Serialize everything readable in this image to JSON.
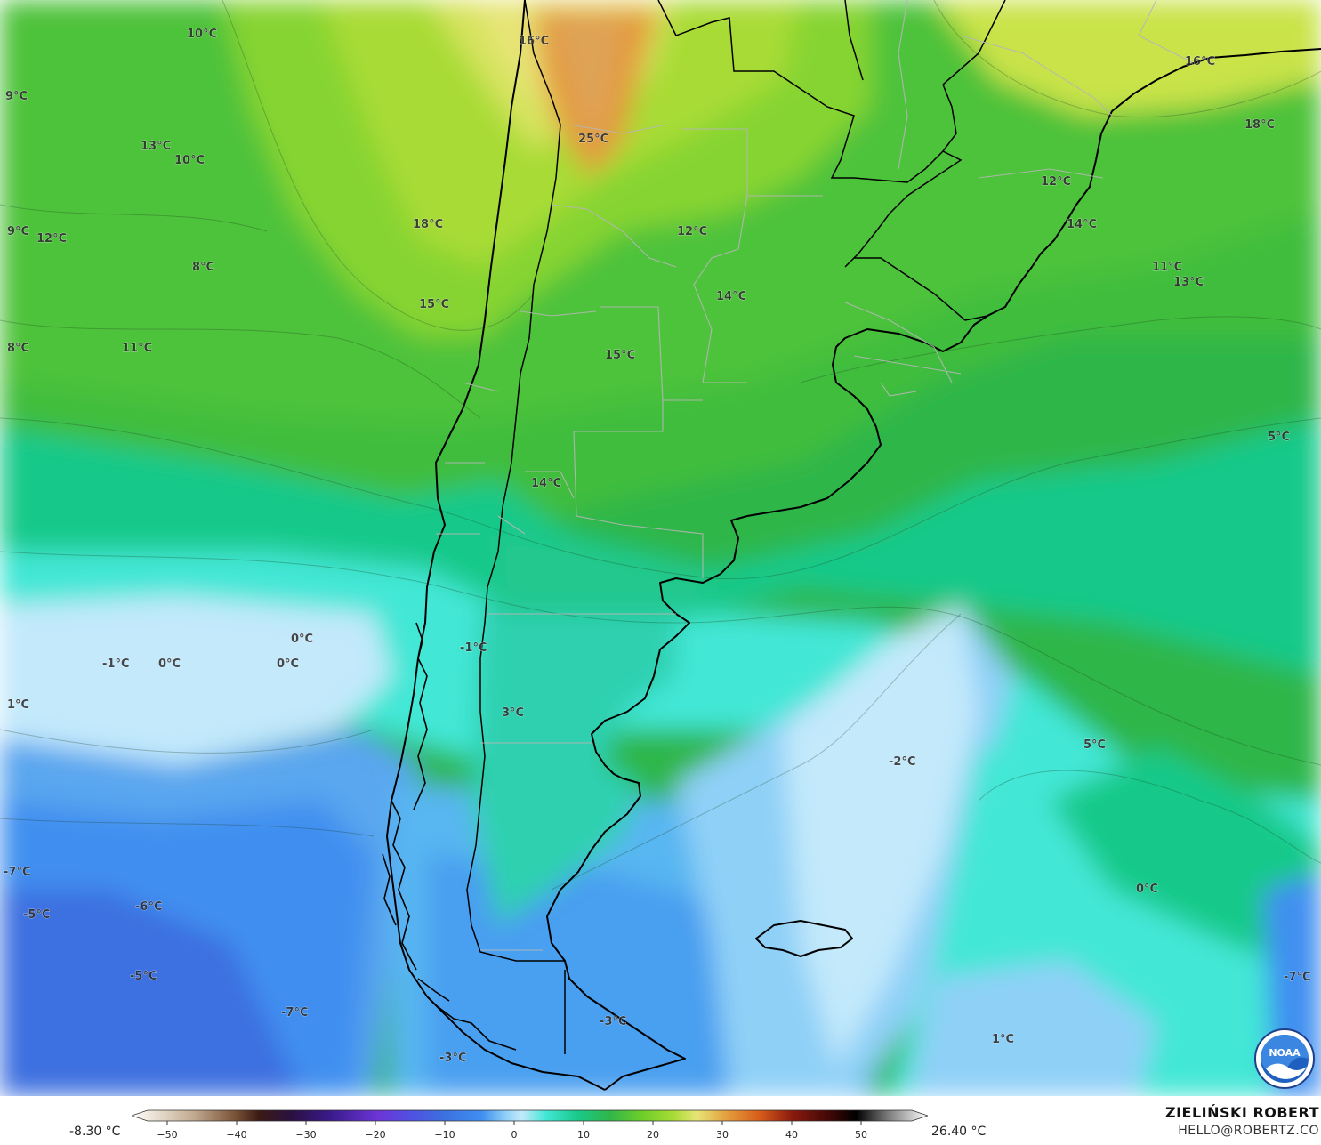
{
  "map": {
    "palette": {
      "deep_blue": "#3d6fe0",
      "blue": "#3f8ff0",
      "light_blue": "#8fd0f7",
      "pale_blue": "#c3e9fb",
      "cyan": "#43e7d6",
      "teal_green": "#19c98a",
      "green": "#2fb64a",
      "light_green": "#6ccd2a",
      "yellow_green": "#a8db35",
      "yellow": "#e6e576",
      "orange": "#e49a3a"
    },
    "labels": [
      {
        "text": "10°C"
      },
      {
        "text": "16°C"
      },
      {
        "text": "16°C"
      },
      {
        "text": "9°C"
      },
      {
        "text": "13°C"
      },
      {
        "text": "10°C"
      },
      {
        "text": "25°C"
      },
      {
        "text": "18°C"
      },
      {
        "text": "9°C"
      },
      {
        "text": "12°C"
      },
      {
        "text": "18°C"
      },
      {
        "text": "12°C"
      },
      {
        "text": "12°C"
      },
      {
        "text": "14°C"
      },
      {
        "text": "8°C"
      },
      {
        "text": "11°C"
      },
      {
        "text": "13°C"
      },
      {
        "text": "15°C"
      },
      {
        "text": "14°C"
      },
      {
        "text": "8°C"
      },
      {
        "text": "11°C"
      },
      {
        "text": "15°C"
      },
      {
        "text": "5°C"
      },
      {
        "text": "14°C"
      },
      {
        "text": "0°C"
      },
      {
        "text": "-1°C"
      },
      {
        "text": "0°C"
      },
      {
        "text": "0°C"
      },
      {
        "text": "-1°C"
      },
      {
        "text": "1°C"
      },
      {
        "text": "3°C"
      },
      {
        "text": "5°C"
      },
      {
        "text": "-2°C"
      },
      {
        "text": "-7°C"
      },
      {
        "text": "0°C"
      },
      {
        "text": "-5°C"
      },
      {
        "text": "-6°C"
      },
      {
        "text": "-5°C"
      },
      {
        "text": "-7°C"
      },
      {
        "text": "-7°C"
      },
      {
        "text": "-3°C"
      },
      {
        "text": "-3°C"
      },
      {
        "text": "1°C"
      }
    ]
  },
  "legend": {
    "min_label": "-8.30 °C",
    "max_label": "26.40 °C",
    "ticks": [
      "−50",
      "−40",
      "−30",
      "−20",
      "−10",
      "0",
      "10",
      "20",
      "30",
      "40",
      "50"
    ]
  },
  "credit": {
    "name": "ZIELIŃSKI ROBERT",
    "email": "HELLO@ROBERTZ.CO"
  },
  "logo": {
    "text": "NOAA"
  }
}
